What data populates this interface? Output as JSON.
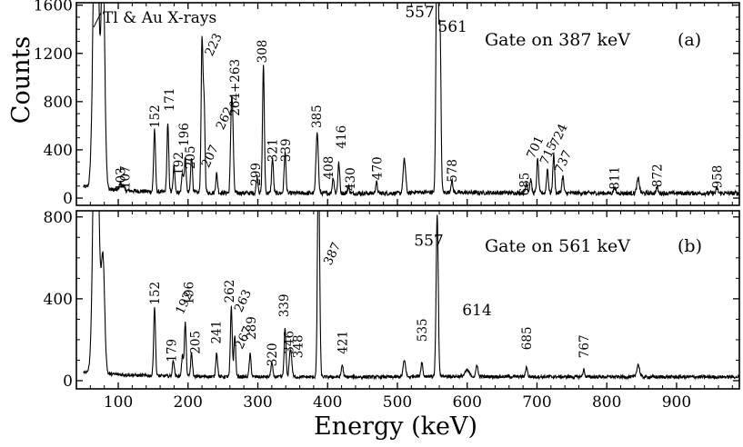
{
  "chart_data": [
    {
      "type": "line",
      "panel": "a",
      "xlim": [
        40,
        990
      ],
      "ylim": [
        -60,
        1620
      ],
      "yticks": [
        0,
        400,
        800,
        1200,
        1600
      ],
      "gate_text": "Gate on 387 keV",
      "panel_label": "(a)",
      "xray_label": "Tl & Au X-rays",
      "baseline": 40,
      "peaks": [
        {
          "e": 68,
          "h": 3000,
          "w": 3.5
        },
        {
          "e": 78,
          "h": 1900,
          "w": 2.6
        },
        {
          "e": 103,
          "h": 70,
          "w": 1.3
        },
        {
          "e": 107,
          "h": 50,
          "w": 1.3
        },
        {
          "e": 152,
          "h": 520,
          "w": 1.3
        },
        {
          "e": 171,
          "h": 560,
          "w": 1.3
        },
        {
          "e": 180,
          "h": 220,
          "w": 1.3
        },
        {
          "e": 192,
          "h": 160,
          "w": 1.3
        },
        {
          "e": 196,
          "h": 280,
          "w": 1.3
        },
        {
          "e": 205,
          "h": 300,
          "w": 1.3
        },
        {
          "e": 220,
          "h": 1250,
          "w": 1.3
        },
        {
          "e": 223,
          "h": 720,
          "w": 1.3
        },
        {
          "e": 241,
          "h": 160,
          "w": 1.3
        },
        {
          "e": 262,
          "h": 600,
          "w": 1.3
        },
        {
          "e": 264,
          "h": 480,
          "w": 1.3
        },
        {
          "e": 299,
          "h": 140,
          "w": 1.3
        },
        {
          "e": 308,
          "h": 1070,
          "w": 1.3
        },
        {
          "e": 321,
          "h": 290,
          "w": 1.3
        },
        {
          "e": 339,
          "h": 340,
          "w": 1.3
        },
        {
          "e": 385,
          "h": 520,
          "w": 1.6
        },
        {
          "e": 408,
          "h": 130,
          "w": 1.3
        },
        {
          "e": 416,
          "h": 250,
          "w": 1.3
        },
        {
          "e": 430,
          "h": 60,
          "w": 1.3
        },
        {
          "e": 470,
          "h": 90,
          "w": 1.3
        },
        {
          "e": 510,
          "h": 280,
          "w": 1.8
        },
        {
          "e": 557,
          "h": 2600,
          "w": 1.5
        },
        {
          "e": 561,
          "h": 1350,
          "w": 1.4
        },
        {
          "e": 578,
          "h": 100,
          "w": 1.3
        },
        {
          "e": 685,
          "h": 90,
          "w": 1.3
        },
        {
          "e": 691,
          "h": 110,
          "w": 1.3
        },
        {
          "e": 701,
          "h": 280,
          "w": 1.3
        },
        {
          "e": 715,
          "h": 200,
          "w": 1.3
        },
        {
          "e": 724,
          "h": 320,
          "w": 1.3
        },
        {
          "e": 737,
          "h": 140,
          "w": 1.3
        },
        {
          "e": 811,
          "h": 50,
          "w": 1.3
        },
        {
          "e": 845,
          "h": 120,
          "w": 1.8
        },
        {
          "e": 872,
          "h": 50,
          "w": 1.3
        },
        {
          "e": 958,
          "h": 40,
          "w": 1.3
        }
      ],
      "labels": [
        {
          "text": "103",
          "e": 103,
          "c": 60,
          "rot": -90
        },
        {
          "text": "107",
          "e": 110,
          "c": 75,
          "rot": -90
        },
        {
          "text": "152",
          "e": 152,
          "c": 580,
          "rot": -90
        },
        {
          "text": "171",
          "e": 173,
          "c": 720,
          "rot": -90
        },
        {
          "text": "192",
          "e": 186,
          "c": 190,
          "rot": -90
        },
        {
          "text": "196",
          "e": 194,
          "c": 430,
          "rot": -90
        },
        {
          "text": "205",
          "e": 203,
          "c": 240,
          "rot": -90
        },
        {
          "text": "207",
          "e": 223,
          "c": 245,
          "rot": -65
        },
        {
          "text": "223",
          "e": 228,
          "c": 1170,
          "rot": -65
        },
        {
          "text": "262",
          "e": 244,
          "c": 560,
          "rot": -65
        },
        {
          "text": "264+263",
          "e": 267,
          "c": 680,
          "rot": -90
        },
        {
          "text": "299",
          "e": 297,
          "c": 100,
          "rot": -90
        },
        {
          "text": "308",
          "e": 306,
          "c": 1120,
          "rot": -90
        },
        {
          "text": "321",
          "e": 321,
          "c": 300,
          "rot": -90
        },
        {
          "text": "339",
          "e": 340,
          "c": 300,
          "rot": -90
        },
        {
          "text": "385",
          "e": 384,
          "c": 580,
          "rot": -90
        },
        {
          "text": "408",
          "e": 401,
          "c": 155,
          "rot": -90
        },
        {
          "text": "416",
          "e": 419,
          "c": 410,
          "rot": -90
        },
        {
          "text": "430",
          "e": 432,
          "c": 60,
          "rot": -90
        },
        {
          "text": "470",
          "e": 471,
          "c": 150,
          "rot": -90
        },
        {
          "text": "557",
          "e": 532,
          "c": 1500,
          "rot": 0
        },
        {
          "text": "561",
          "e": 579,
          "c": 1380,
          "rot": 0
        },
        {
          "text": "578",
          "e": 578,
          "c": 130,
          "rot": -90
        },
        {
          "text": "685",
          "e": 682,
          "c": 20,
          "rot": -90
        },
        {
          "text": "701",
          "e": 689,
          "c": 320,
          "rot": -65
        },
        {
          "text": "715",
          "e": 708,
          "c": 270,
          "rot": -65
        },
        {
          "text": "724",
          "e": 723,
          "c": 420,
          "rot": -65
        },
        {
          "text": "737",
          "e": 729,
          "c": 200,
          "rot": -65
        },
        {
          "text": "811",
          "e": 811,
          "c": 70,
          "rot": -90
        },
        {
          "text": "872",
          "e": 872,
          "c": 90,
          "rot": -90
        },
        {
          "text": "958",
          "e": 958,
          "c": 80,
          "rot": -90
        }
      ]
    },
    {
      "type": "line",
      "panel": "b",
      "xlim": [
        40,
        990
      ],
      "ylim": [
        -40,
        830
      ],
      "yticks": [
        0,
        400,
        800
      ],
      "gate_text": "Gate on 561 keV",
      "panel_label": "(b)",
      "baseline": 18,
      "peaks": [
        {
          "e": 68,
          "h": 1800,
          "w": 3.5
        },
        {
          "e": 78,
          "h": 560,
          "w": 2.5
        },
        {
          "e": 152,
          "h": 340,
          "w": 1.3
        },
        {
          "e": 179,
          "h": 80,
          "w": 1.3
        },
        {
          "e": 192,
          "h": 100,
          "w": 1.3
        },
        {
          "e": 196,
          "h": 260,
          "w": 1.3
        },
        {
          "e": 205,
          "h": 110,
          "w": 1.3
        },
        {
          "e": 241,
          "h": 120,
          "w": 1.3
        },
        {
          "e": 262,
          "h": 340,
          "w": 1.3
        },
        {
          "e": 267,
          "h": 200,
          "w": 1.3
        },
        {
          "e": 289,
          "h": 110,
          "w": 1.3
        },
        {
          "e": 320,
          "h": 70,
          "w": 1.3
        },
        {
          "e": 339,
          "h": 240,
          "w": 1.3
        },
        {
          "e": 346,
          "h": 100,
          "w": 1.3
        },
        {
          "e": 348,
          "h": 80,
          "w": 1.3
        },
        {
          "e": 387,
          "h": 1100,
          "w": 1.5
        },
        {
          "e": 421,
          "h": 60,
          "w": 1.3
        },
        {
          "e": 510,
          "h": 80,
          "w": 1.8
        },
        {
          "e": 535,
          "h": 70,
          "w": 1.3
        },
        {
          "e": 557,
          "h": 790,
          "w": 1.5
        },
        {
          "e": 600,
          "h": 30,
          "w": 3
        },
        {
          "e": 614,
          "h": 60,
          "w": 1.3
        },
        {
          "e": 685,
          "h": 50,
          "w": 1.3
        },
        {
          "e": 767,
          "h": 35,
          "w": 1.3
        },
        {
          "e": 845,
          "h": 60,
          "w": 2
        }
      ],
      "labels": [
        {
          "text": "152",
          "e": 152,
          "c": 370,
          "rot": -90
        },
        {
          "text": "179",
          "e": 176,
          "c": 90,
          "rot": -90
        },
        {
          "text": "192",
          "e": 186,
          "c": 320,
          "rot": -65
        },
        {
          "text": "196",
          "e": 201,
          "c": 370,
          "rot": -90
        },
        {
          "text": "205",
          "e": 210,
          "c": 130,
          "rot": -90
        },
        {
          "text": "241",
          "e": 240,
          "c": 180,
          "rot": -90
        },
        {
          "text": "262",
          "e": 259,
          "c": 380,
          "rot": -90
        },
        {
          "text": "263",
          "e": 270,
          "c": 330,
          "rot": -65
        },
        {
          "text": "267",
          "e": 271,
          "c": 150,
          "rot": -65
        },
        {
          "text": "289",
          "e": 290,
          "c": 200,
          "rot": -90
        },
        {
          "text": "320",
          "e": 320,
          "c": 70,
          "rot": -90
        },
        {
          "text": "339",
          "e": 337,
          "c": 310,
          "rot": -90
        },
        {
          "text": "346",
          "e": 344,
          "c": 130,
          "rot": -90
        },
        {
          "text": "348",
          "e": 357,
          "c": 110,
          "rot": -90
        },
        {
          "text": "387",
          "e": 398,
          "c": 560,
          "rot": -65
        },
        {
          "text": "421",
          "e": 421,
          "c": 130,
          "rot": -90
        },
        {
          "text": "535",
          "e": 535,
          "c": 190,
          "rot": -90
        },
        {
          "text": "557",
          "e": 545,
          "c": 660,
          "rot": 0
        },
        {
          "text": "614",
          "e": 614,
          "c": 320,
          "rot": 0
        },
        {
          "text": "685",
          "e": 685,
          "c": 150,
          "rot": -90
        },
        {
          "text": "767",
          "e": 767,
          "c": 110,
          "rot": -90
        }
      ]
    }
  ],
  "axes": {
    "xlabel": "Energy (keV)",
    "ylabel": "Counts",
    "xticks": [
      100,
      200,
      300,
      400,
      500,
      600,
      700,
      800,
      900
    ]
  }
}
